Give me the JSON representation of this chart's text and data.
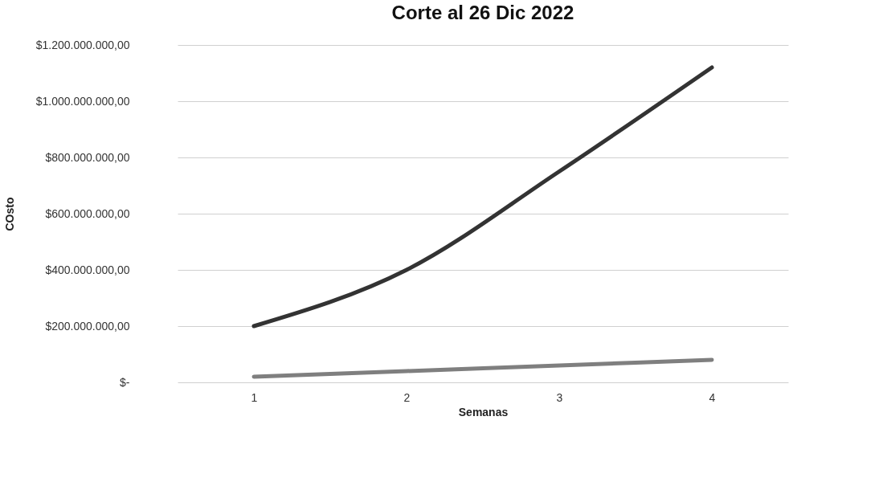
{
  "chart_data": {
    "type": "line",
    "title": "Corte al  26 Dic 2022",
    "xlabel": "Semanas",
    "ylabel": "COsto",
    "categories": [
      "1",
      "2",
      "3",
      "4"
    ],
    "series": [
      {
        "color": "#333333",
        "values": [
          200000000,
          400000000,
          750000000,
          1120000000
        ]
      },
      {
        "color": "#7f7f7f",
        "values": [
          20000000,
          40000000,
          60000000,
          80000000
        ]
      }
    ],
    "ylim": [
      0,
      1200000000
    ],
    "yticks": [
      {
        "value": 0,
        "label": "$-"
      },
      {
        "value": 200000000,
        "label": "$200.000.000,00"
      },
      {
        "value": 400000000,
        "label": "$400.000.000,00"
      },
      {
        "value": 600000000,
        "label": "$600.000.000,00"
      },
      {
        "value": 800000000,
        "label": "$800.000.000,00"
      },
      {
        "value": 1000000000,
        "label": "$1.000.000.000,00"
      },
      {
        "value": 1200000000,
        "label": "$1.200.000.000,00"
      }
    ],
    "grid": "y",
    "legend": false,
    "marker": "none",
    "line_style": "solid"
  }
}
